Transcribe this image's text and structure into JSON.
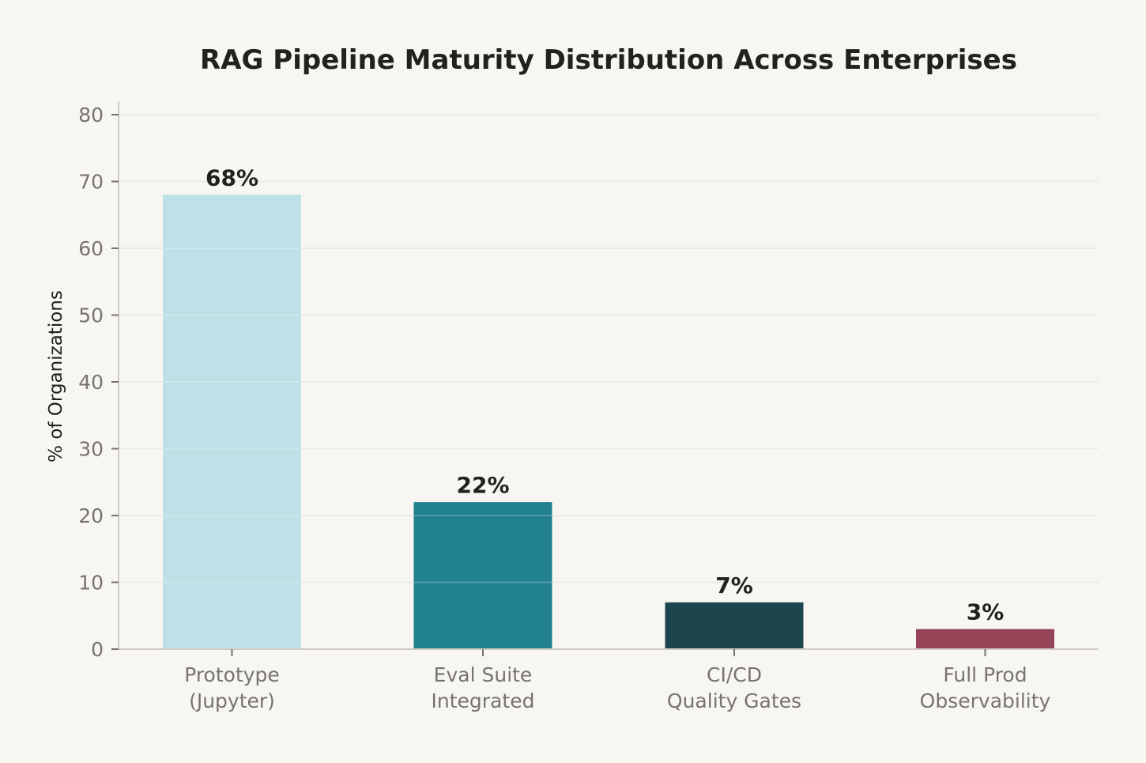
{
  "chart_data": {
    "type": "bar",
    "title": "RAG Pipeline Maturity Distribution Across Enterprises",
    "xlabel": "",
    "ylabel": "% of Organizations",
    "categories": [
      [
        "Prototype",
        "(Jupyter)"
      ],
      [
        "Eval Suite",
        "Integrated"
      ],
      [
        "CI/CD",
        "Quality Gates"
      ],
      [
        "Full Prod",
        "Observability"
      ]
    ],
    "values": [
      68,
      22,
      7,
      3
    ],
    "data_labels": [
      "68%",
      "22%",
      "7%",
      "3%"
    ],
    "colors": [
      "#bde1e6",
      "#20808d",
      "#1c454d",
      "#944456"
    ],
    "ylim": [
      0,
      82
    ],
    "yticks": [
      0,
      10,
      20,
      30,
      40,
      50,
      60,
      70,
      80
    ],
    "grid": true
  },
  "style": {
    "background": "#f7f6f2",
    "grid_color": "#e8e6e1",
    "axis_color": "#cfccc7"
  }
}
